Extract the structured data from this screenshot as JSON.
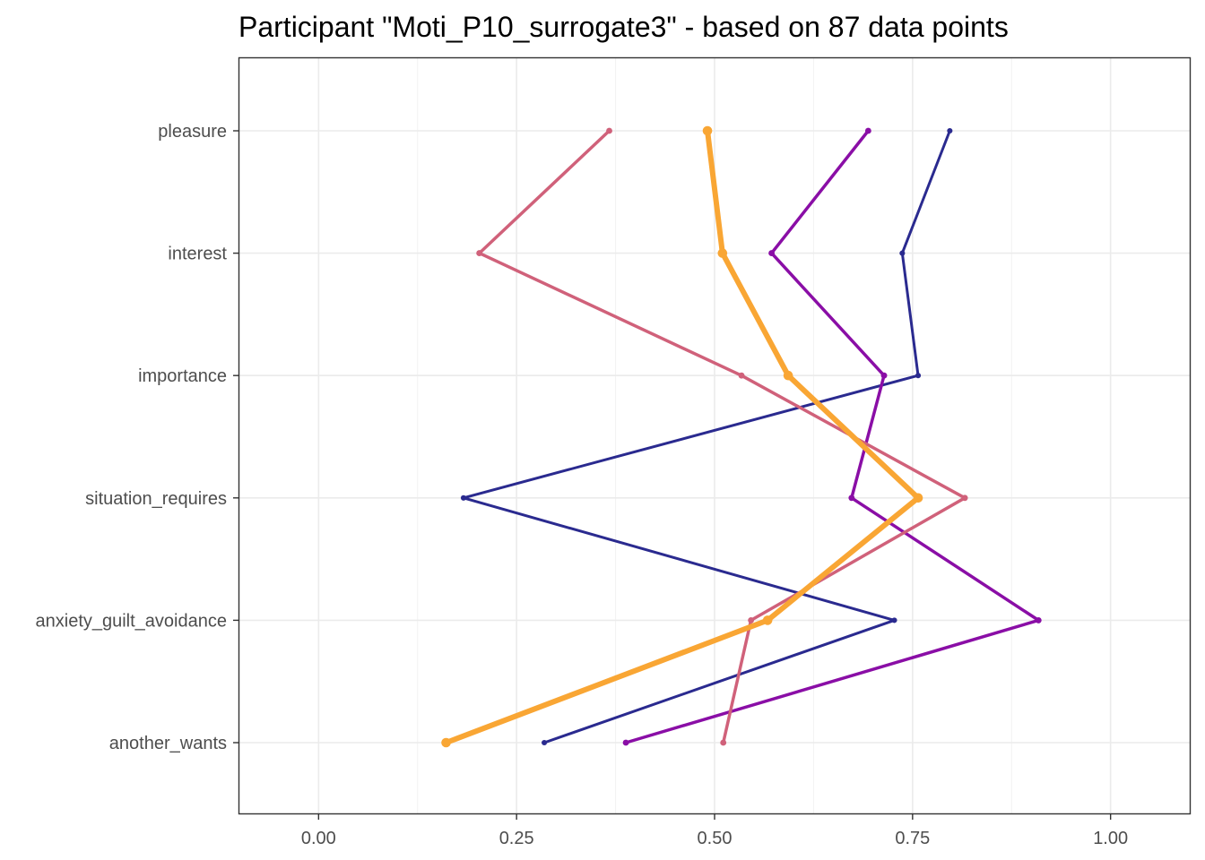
{
  "chart_data": {
    "type": "line",
    "title": "Participant \"Moti_P10_surrogate3\" - based on 87 data points",
    "xlabel": "",
    "ylabel": "",
    "xlim": [
      -0.1,
      1.1
    ],
    "x_ticks": [
      0,
      0.25,
      0.5,
      0.75,
      1
    ],
    "x_tick_labels": [
      "0.00",
      "0.25",
      "0.50",
      "0.75",
      "1.00"
    ],
    "categories": [
      "pleasure",
      "interest",
      "importance",
      "situation_requires",
      "anxiety_guilt_avoidance",
      "another_wants"
    ],
    "grid": true,
    "legend": "none",
    "series": [
      {
        "color": "#2a2a8f",
        "stroke": 3,
        "values": [
          0.797,
          0.737,
          0.757,
          0.183,
          0.727,
          0.285
        ]
      },
      {
        "color": "#8a0ea6",
        "stroke": 3.5,
        "values": [
          0.694,
          0.572,
          0.714,
          0.673,
          0.909,
          0.388
        ]
      },
      {
        "color": "#d0617a",
        "stroke": 3.5,
        "values": [
          0.367,
          0.203,
          0.534,
          0.816,
          0.546,
          0.511
        ]
      },
      {
        "color": "#f9a634",
        "stroke": 6,
        "values": [
          0.491,
          0.51,
          0.593,
          0.757,
          0.567,
          0.161
        ]
      }
    ]
  }
}
